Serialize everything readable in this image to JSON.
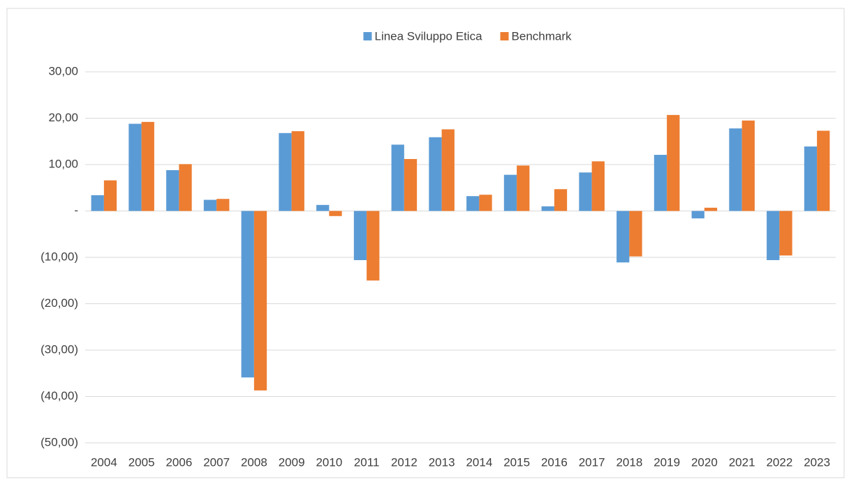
{
  "chart_data": {
    "type": "bar",
    "categories": [
      "2004",
      "2005",
      "2006",
      "2007",
      "2008",
      "2009",
      "2010",
      "2011",
      "2012",
      "2013",
      "2014",
      "2015",
      "2016",
      "2017",
      "2018",
      "2019",
      "2020",
      "2021",
      "2022",
      "2023"
    ],
    "series": [
      {
        "name": "Linea Sviluppo Etica",
        "color": "#5b9bd5",
        "values": [
          3.4,
          18.8,
          8.8,
          2.4,
          -35.9,
          16.8,
          1.3,
          -10.6,
          14.3,
          15.9,
          3.2,
          7.8,
          1.0,
          8.3,
          -11.1,
          12.1,
          -1.6,
          17.8,
          -10.6,
          13.9
        ]
      },
      {
        "name": "Benchmark",
        "color": "#ed7d31",
        "values": [
          6.6,
          19.2,
          10.1,
          2.6,
          -38.7,
          17.2,
          -1.1,
          -15.0,
          11.2,
          17.6,
          3.5,
          9.8,
          4.7,
          10.7,
          -9.8,
          20.7,
          0.7,
          19.5,
          -9.6,
          17.3
        ]
      }
    ],
    "ylim": [
      -50,
      30
    ],
    "yticks": [
      {
        "value": 30,
        "label": "30,00"
      },
      {
        "value": 20,
        "label": "20,00"
      },
      {
        "value": 10,
        "label": "10,00"
      },
      {
        "value": 0,
        "label": "-"
      },
      {
        "value": -10,
        "label": "(10,00)"
      },
      {
        "value": -20,
        "label": "(20,00)"
      },
      {
        "value": -30,
        "label": "(30,00)"
      },
      {
        "value": -40,
        "label": "(40,00)"
      },
      {
        "value": -50,
        "label": "(50,00)"
      }
    ],
    "grid": true,
    "legend": "top"
  }
}
